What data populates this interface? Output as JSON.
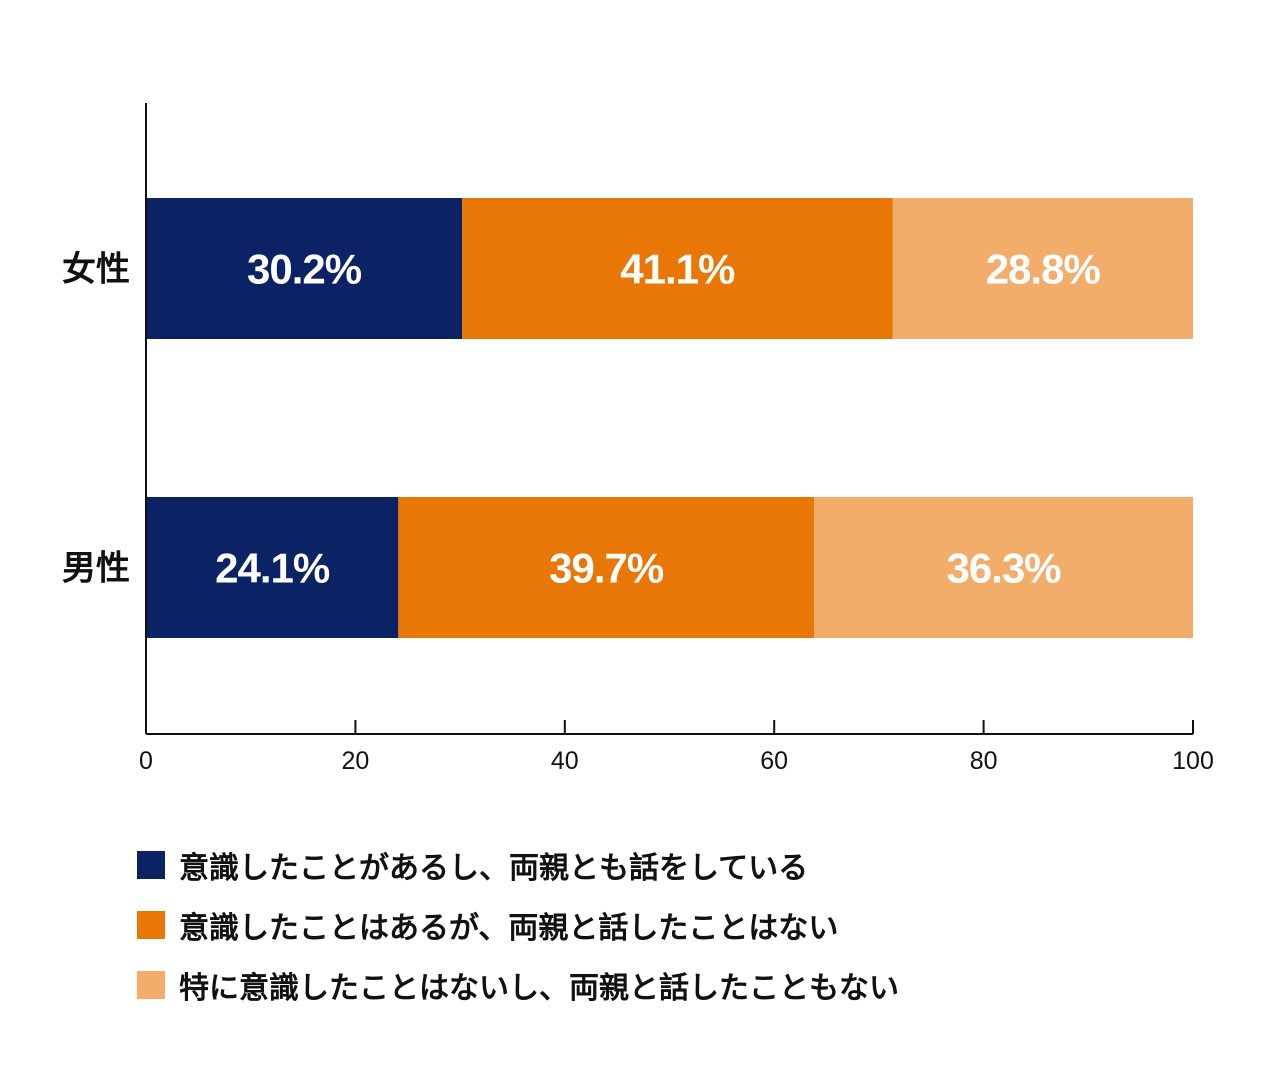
{
  "chart_data": {
    "type": "bar",
    "orientation": "horizontal",
    "stacked": true,
    "title": "",
    "xlabel": "",
    "ylabel": "",
    "xlim": [
      0,
      100
    ],
    "xticks": [
      0,
      20,
      40,
      60,
      80,
      100
    ],
    "grid": false,
    "categories": [
      "女性",
      "男性"
    ],
    "series": [
      {
        "name": "意識したことがあるし、両親とも話をしている",
        "color": "#0B2265",
        "values": [
          30.2,
          24.1
        ],
        "labels": [
          "30.2%",
          "24.1%"
        ]
      },
      {
        "name": "意識したことはあるが、両親と話したことはない",
        "color": "#E87705",
        "values": [
          41.1,
          39.7
        ],
        "labels": [
          "41.1%",
          "39.7%"
        ]
      },
      {
        "name": "特に意識したことはないし、両親と話したこともない",
        "color": "#F2AD6B",
        "values": [
          28.8,
          36.3
        ],
        "labels": [
          "28.8%",
          "36.3%"
        ]
      }
    ],
    "legend_position": "bottom-left"
  }
}
